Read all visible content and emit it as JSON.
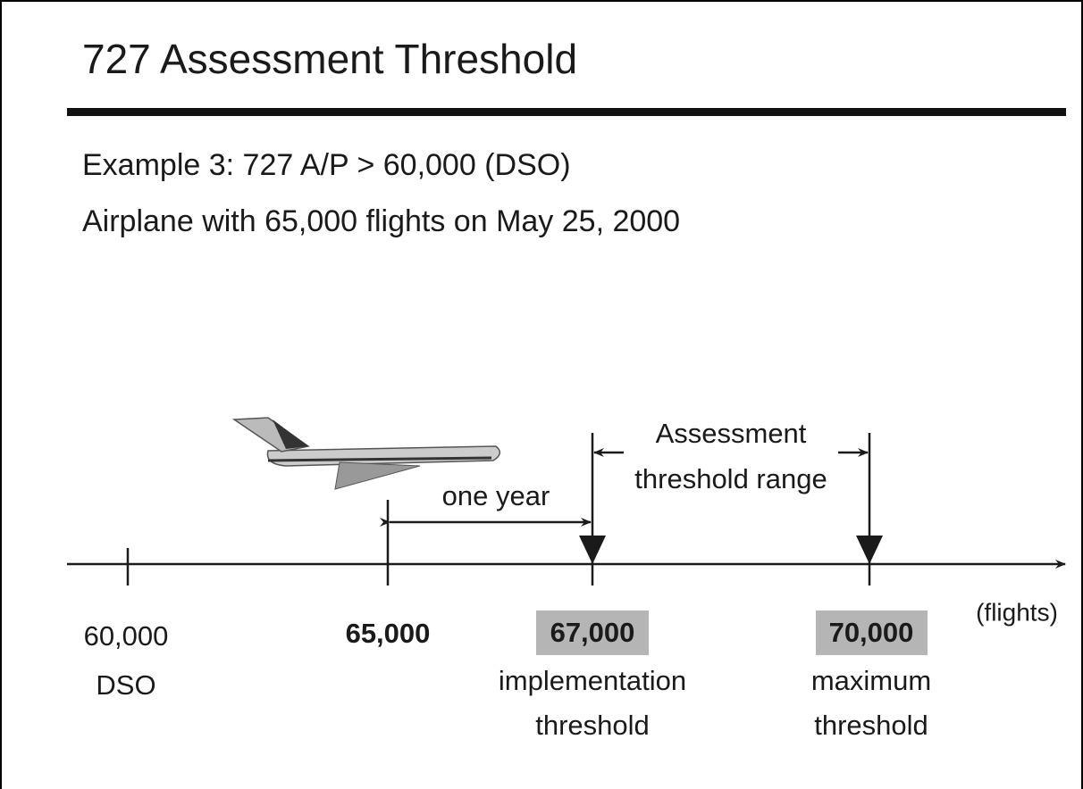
{
  "title": "727 Assessment Threshold",
  "lines": [
    "Example 3:  727 A/P > 60,000 (DSO)",
    "Airplane with 65,000 flights on May 25, 2000"
  ],
  "timeline": {
    "unit": "(flights)",
    "markers": [
      {
        "value": "60,000",
        "caption": [
          "DSO"
        ]
      },
      {
        "value": "65,000",
        "caption": []
      },
      {
        "value": "67,000",
        "caption": [
          "implementation",
          "threshold"
        ]
      },
      {
        "value": "70,000",
        "caption": [
          "maximum",
          "threshold"
        ]
      }
    ],
    "spans": [
      {
        "label": [
          "one year"
        ]
      },
      {
        "label": [
          "Assessment",
          "threshold range"
        ]
      }
    ]
  }
}
